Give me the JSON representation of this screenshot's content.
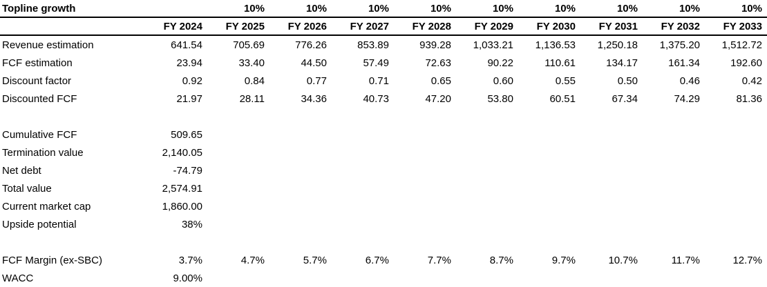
{
  "sheet": {
    "growth": {
      "label": "Topline growth",
      "values": [
        "",
        "10%",
        "10%",
        "10%",
        "10%",
        "10%",
        "10%",
        "10%",
        "10%",
        "10%"
      ]
    },
    "years": {
      "values": [
        "FY 2024",
        "FY 2025",
        "FY 2026",
        "FY 2027",
        "FY 2028",
        "FY 2029",
        "FY 2030",
        "FY 2031",
        "FY 2032",
        "FY 2033"
      ]
    },
    "rows": [
      {
        "label": "Revenue estimation",
        "values": [
          "641.54",
          "705.69",
          "776.26",
          "853.89",
          "939.28",
          "1,033.21",
          "1,136.53",
          "1,250.18",
          "1,375.20",
          "1,512.72"
        ]
      },
      {
        "label": "FCF estimation",
        "values": [
          "23.94",
          "33.40",
          "44.50",
          "57.49",
          "72.63",
          "90.22",
          "110.61",
          "134.17",
          "161.34",
          "192.60"
        ]
      },
      {
        "label": "Discount factor",
        "values": [
          "0.92",
          "0.84",
          "0.77",
          "0.71",
          "0.65",
          "0.60",
          "0.55",
          "0.50",
          "0.46",
          "0.42"
        ]
      },
      {
        "label": "Discounted FCF",
        "values": [
          "21.97",
          "28.11",
          "34.36",
          "40.73",
          "47.20",
          "53.80",
          "60.51",
          "67.34",
          "74.29",
          "81.36"
        ]
      }
    ],
    "summary": [
      {
        "label": "Cumulative FCF",
        "value": "509.65"
      },
      {
        "label": "Termination value",
        "value": "2,140.05"
      },
      {
        "label": "Net debt",
        "value": "-74.79"
      },
      {
        "label": "Total value",
        "value": "2,574.91"
      },
      {
        "label": "Current market cap",
        "value": "1,860.00"
      },
      {
        "label": "Upside potential",
        "value": "38%"
      }
    ],
    "margin": {
      "label": "FCF Margin (ex-SBC)",
      "values": [
        "3.7%",
        "4.7%",
        "5.7%",
        "6.7%",
        "7.7%",
        "8.7%",
        "9.7%",
        "10.7%",
        "11.7%",
        "12.7%"
      ]
    },
    "wacc": {
      "label": "WACC",
      "value": "9.00%"
    }
  }
}
